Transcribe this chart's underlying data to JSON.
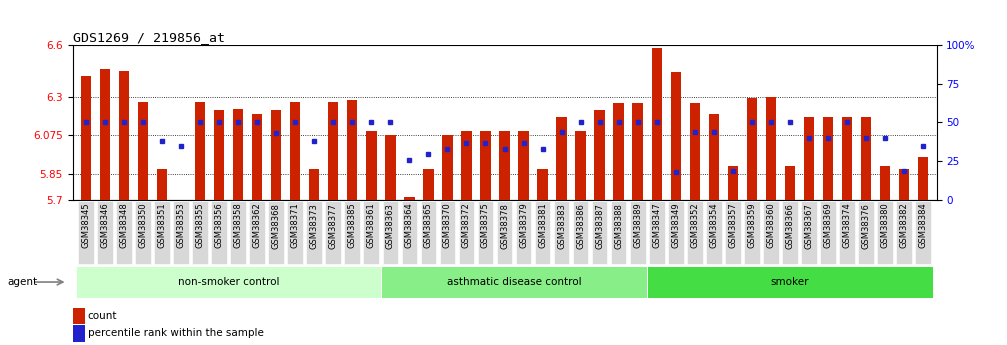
{
  "title": "GDS1269 / 219856_at",
  "ylim": [
    5.7,
    6.6
  ],
  "yticks_left": [
    5.7,
    5.85,
    6.075,
    6.3,
    6.6
  ],
  "yticks_right_pct": [
    0,
    25,
    50,
    75,
    100
  ],
  "yticks_right_labels": [
    "0",
    "25",
    "50",
    "75",
    "100%"
  ],
  "bar_color": "#cc2200",
  "dot_color": "#2222cc",
  "bg_color": "#ffffff",
  "plot_bg": "#ffffff",
  "grid_lines": [
    5.85,
    6.075,
    6.3
  ],
  "grid_style": "dotted",
  "groups": [
    {
      "label": "non-smoker control",
      "color": "#ccffcc",
      "start": 0,
      "end": 16
    },
    {
      "label": "asthmatic disease control",
      "color": "#88ee88",
      "start": 16,
      "end": 30
    },
    {
      "label": "smoker",
      "color": "#44dd44",
      "start": 30,
      "end": 45
    }
  ],
  "samples": [
    "GSM38345",
    "GSM38346",
    "GSM38348",
    "GSM38350",
    "GSM38351",
    "GSM38353",
    "GSM38355",
    "GSM38356",
    "GSM38358",
    "GSM38362",
    "GSM38368",
    "GSM38371",
    "GSM38373",
    "GSM38377",
    "GSM38385",
    "GSM38361",
    "GSM38363",
    "GSM38364",
    "GSM38365",
    "GSM38370",
    "GSM38372",
    "GSM38375",
    "GSM38378",
    "GSM38379",
    "GSM38381",
    "GSM38383",
    "GSM38386",
    "GSM38387",
    "GSM38388",
    "GSM38389",
    "GSM38347",
    "GSM38349",
    "GSM38352",
    "GSM38354",
    "GSM38357",
    "GSM38359",
    "GSM38360",
    "GSM38366",
    "GSM38367",
    "GSM38369",
    "GSM38374",
    "GSM38376",
    "GSM38380",
    "GSM38382",
    "GSM38384"
  ],
  "bar_heights": [
    6.42,
    6.46,
    6.45,
    6.27,
    5.88,
    5.7,
    6.27,
    6.22,
    6.23,
    6.2,
    6.22,
    6.27,
    5.88,
    6.27,
    6.28,
    6.1,
    6.075,
    5.72,
    5.88,
    6.075,
    6.1,
    6.1,
    6.1,
    6.1,
    5.88,
    6.18,
    6.1,
    6.22,
    6.26,
    6.26,
    6.58,
    6.44,
    6.26,
    6.2,
    5.9,
    6.29,
    6.3,
    5.9,
    6.18,
    6.18,
    6.18,
    6.18,
    5.9,
    5.88,
    5.95
  ],
  "dot_pcts": [
    50,
    50,
    50,
    50,
    38,
    35,
    50,
    50,
    50,
    50,
    43,
    50,
    38,
    50,
    50,
    50,
    50,
    26,
    30,
    33,
    37,
    37,
    33,
    37,
    33,
    44,
    50,
    50,
    50,
    50,
    50,
    18,
    44,
    44,
    19,
    50,
    50,
    50,
    40,
    40,
    50,
    40,
    40,
    19,
    35
  ]
}
